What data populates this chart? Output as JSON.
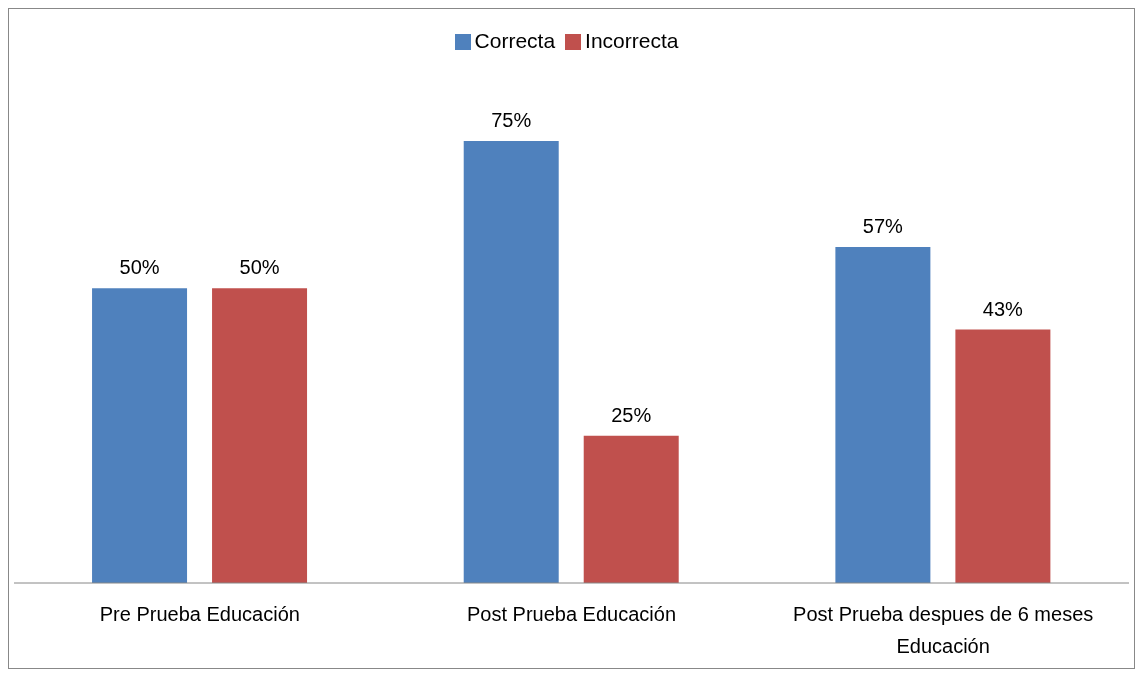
{
  "chart_data": {
    "type": "bar",
    "categories": [
      "Pre Prueba Educación",
      "Post Prueba Educación",
      "Post Prueba despues de 6 meses Educación"
    ],
    "series": [
      {
        "name": "Correcta",
        "color": "#4f81bd",
        "values": [
          50,
          75,
          57
        ],
        "value_labels": [
          "50%",
          "75%",
          "57%"
        ]
      },
      {
        "name": "Incorrecta",
        "color": "#c0504d",
        "values": [
          50,
          25,
          43
        ],
        "value_labels": [
          "50%",
          "25%",
          "43%"
        ]
      }
    ],
    "legend": "top",
    "grid": false
  }
}
